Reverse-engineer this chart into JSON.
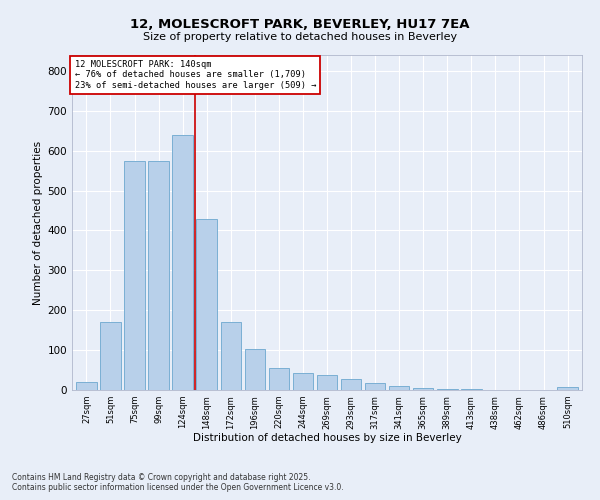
{
  "title": "12, MOLESCROFT PARK, BEVERLEY, HU17 7EA",
  "subtitle": "Size of property relative to detached houses in Beverley",
  "xlabel": "Distribution of detached houses by size in Beverley",
  "ylabel": "Number of detached properties",
  "categories": [
    "27sqm",
    "51sqm",
    "75sqm",
    "99sqm",
    "124sqm",
    "148sqm",
    "172sqm",
    "196sqm",
    "220sqm",
    "244sqm",
    "269sqm",
    "293sqm",
    "317sqm",
    "341sqm",
    "365sqm",
    "389sqm",
    "413sqm",
    "438sqm",
    "462sqm",
    "486sqm",
    "510sqm"
  ],
  "values": [
    20,
    170,
    575,
    575,
    640,
    430,
    170,
    103,
    55,
    42,
    37,
    28,
    17,
    10,
    5,
    3,
    2,
    1,
    1,
    0,
    7
  ],
  "bar_color": "#b8d0ea",
  "bar_edge_color": "#7aafd4",
  "marker_line_index": 4.5,
  "marker_label": "12 MOLESCROFT PARK: 140sqm",
  "annotation_line1": "← 76% of detached houses are smaller (1,709)",
  "annotation_line2": "23% of semi-detached houses are larger (509) →",
  "annotation_box_color": "#ffffff",
  "annotation_box_edge": "#cc0000",
  "marker_line_color": "#cc0000",
  "ylim": [
    0,
    840
  ],
  "yticks": [
    0,
    100,
    200,
    300,
    400,
    500,
    600,
    700,
    800
  ],
  "background_color": "#e8eef8",
  "grid_color": "#ffffff",
  "footer_line1": "Contains HM Land Registry data © Crown copyright and database right 2025.",
  "footer_line2": "Contains public sector information licensed under the Open Government Licence v3.0."
}
